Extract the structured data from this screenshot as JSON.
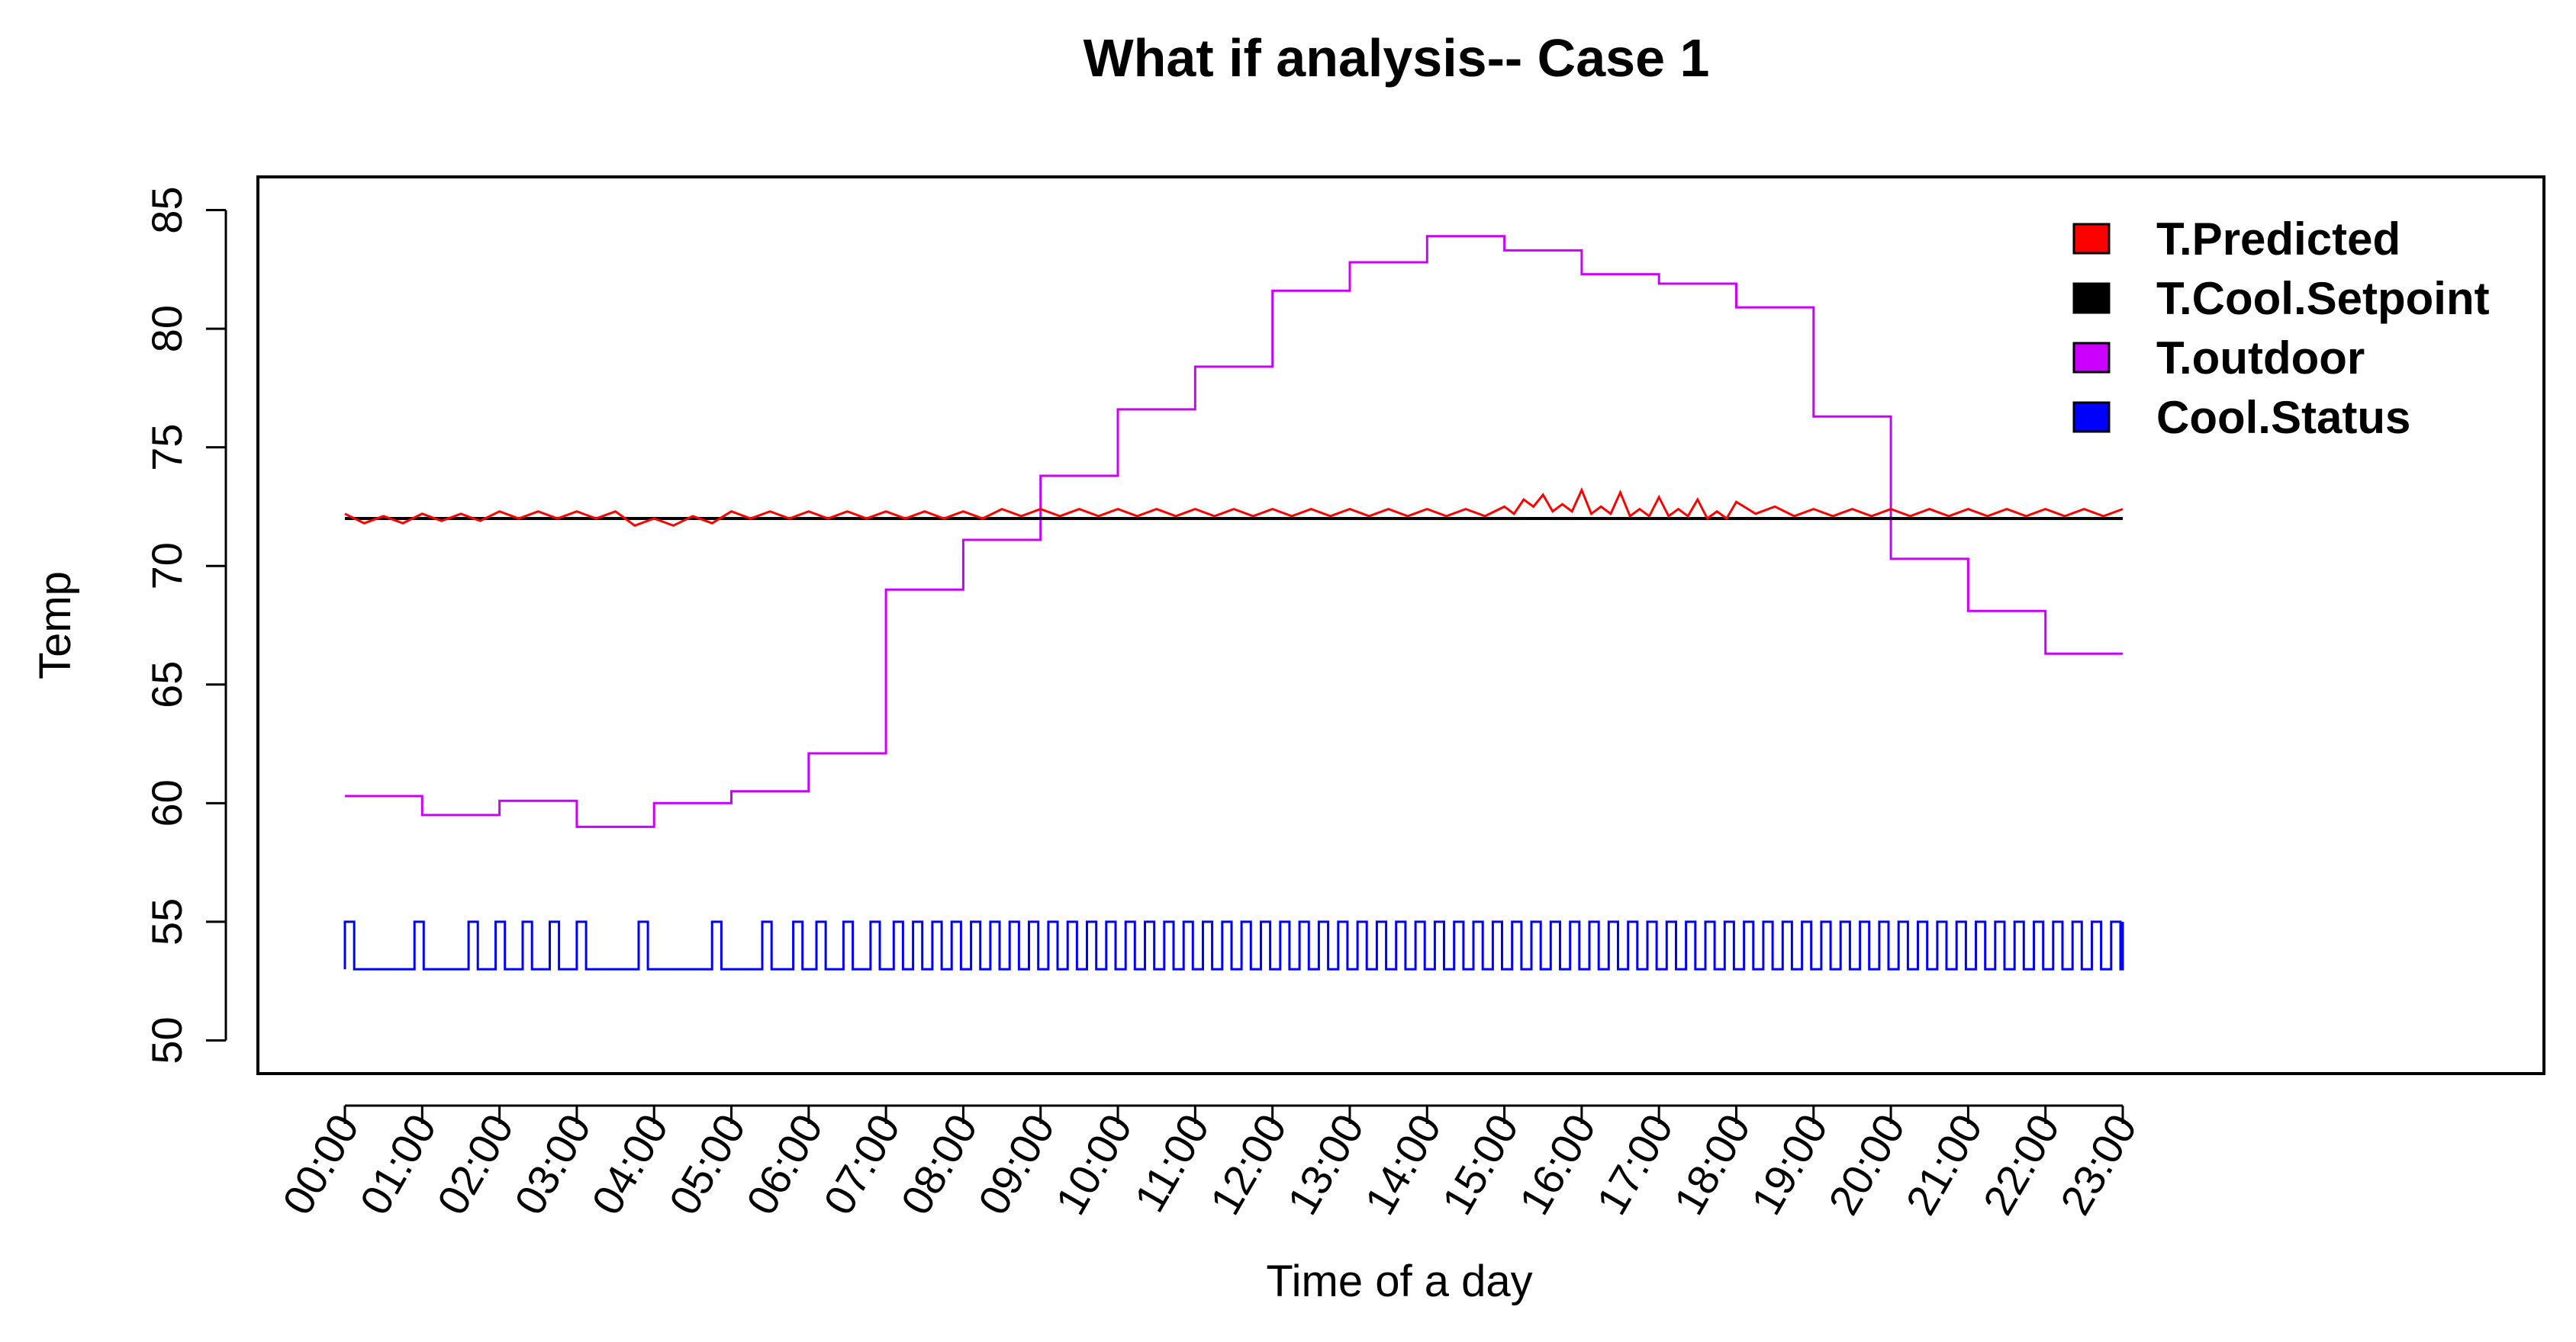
{
  "chart_data": {
    "type": "line",
    "title": "What if analysis-- Case 1",
    "xlabel": "Time of a day",
    "ylabel": "Temp",
    "ylim": [
      48.6,
      86.4
    ],
    "yticks": [
      50,
      55,
      60,
      65,
      70,
      75,
      80,
      85
    ],
    "ytick_labels": [
      "50",
      "55",
      "60",
      "65",
      "70",
      "75",
      "80",
      "85"
    ],
    "xlim_hours": [
      0,
      23
    ],
    "xtick_labels": [
      "00:00",
      "01:00",
      "02:00",
      "03:00",
      "04:00",
      "05:00",
      "06:00",
      "07:00",
      "08:00",
      "09:00",
      "10:00",
      "11:00",
      "12:00",
      "13:00",
      "14:00",
      "15:00",
      "16:00",
      "17:00",
      "18:00",
      "19:00",
      "20:00",
      "21:00",
      "22:00",
      "23:00"
    ],
    "legend_position": "top-right",
    "series": [
      {
        "name": "T.Predicted",
        "color": "#ff0000",
        "description": "oscillates slightly above setpoint",
        "x": [
          0,
          0.5,
          1,
          1.5,
          2,
          2.5,
          3,
          3.5,
          4,
          4.5,
          5,
          5.5,
          6,
          6.5,
          7,
          7.5,
          8,
          8.5,
          9,
          9.5,
          10,
          10.5,
          11,
          11.5,
          12,
          12.5,
          13,
          13.5,
          14,
          14.5,
          15,
          15.25,
          15.5,
          15.75,
          16,
          16.25,
          16.5,
          16.75,
          17,
          17.25,
          17.5,
          17.75,
          18,
          18.5,
          19,
          19.5,
          20,
          20.5,
          21,
          21.5,
          22,
          22.5,
          23
        ],
        "values": [
          72.2,
          72.1,
          72.2,
          72.2,
          72.3,
          72.3,
          72.3,
          72.3,
          72.0,
          72.1,
          72.3,
          72.3,
          72.3,
          72.3,
          72.3,
          72.3,
          72.3,
          72.4,
          72.4,
          72.4,
          72.4,
          72.4,
          72.4,
          72.4,
          72.4,
          72.4,
          72.4,
          72.4,
          72.4,
          72.4,
          72.5,
          72.8,
          73.0,
          72.6,
          73.2,
          72.5,
          73.1,
          72.4,
          72.9,
          72.4,
          72.8,
          72.3,
          72.7,
          72.5,
          72.4,
          72.4,
          72.4,
          72.4,
          72.4,
          72.4,
          72.4,
          72.4,
          72.4
        ]
      },
      {
        "name": "T.Cool.Setpoint",
        "color": "#000000",
        "x": [
          0,
          23
        ],
        "values": [
          72,
          72
        ]
      },
      {
        "name": "T.outdoor",
        "color": "#cc00ff",
        "step": true,
        "x": [
          0,
          1,
          2,
          3,
          4,
          5,
          6,
          7,
          8,
          9,
          10,
          11,
          12,
          13,
          14,
          15,
          16,
          17,
          18,
          19,
          20,
          21,
          22,
          23
        ],
        "values": [
          60.3,
          59.5,
          60.1,
          59.0,
          60.0,
          60.5,
          62.1,
          69.0,
          71.1,
          73.8,
          76.6,
          78.4,
          81.6,
          82.8,
          83.9,
          83.3,
          82.3,
          81.9,
          80.9,
          76.3,
          70.3,
          68.1,
          66.3,
          66.3
        ]
      },
      {
        "name": "Cool.Status",
        "color": "#0000ff",
        "description": "on/off cycling between 53 (off) and 55 (on)",
        "low": 53,
        "high": 55,
        "pulse_times": [
          0.0,
          0.9,
          1.6,
          1.95,
          2.3,
          2.65,
          3.0,
          3.8,
          4.75,
          5.4,
          5.8,
          6.1,
          6.45,
          6.8,
          7.1,
          7.35,
          7.6,
          7.85,
          8.1,
          8.35,
          8.6,
          8.85,
          9.1,
          9.35,
          9.6,
          9.85,
          10.1,
          10.35,
          10.6,
          10.85,
          11.1,
          11.35,
          11.6,
          11.85,
          12.1,
          12.35,
          12.6,
          12.85,
          13.1,
          13.35,
          13.6,
          13.85,
          14.1,
          14.35,
          14.6,
          14.85,
          15.1,
          15.35,
          15.6,
          15.85,
          16.1,
          16.35,
          16.6,
          16.85,
          17.1,
          17.35,
          17.6,
          17.85,
          18.1,
          18.35,
          18.6,
          18.85,
          19.1,
          19.35,
          19.6,
          19.85,
          20.1,
          20.35,
          20.6,
          20.85,
          21.1,
          21.35,
          21.6,
          21.85,
          22.1,
          22.35,
          22.6,
          22.85
        ],
        "pulse_width_hours": 0.12
      }
    ]
  }
}
